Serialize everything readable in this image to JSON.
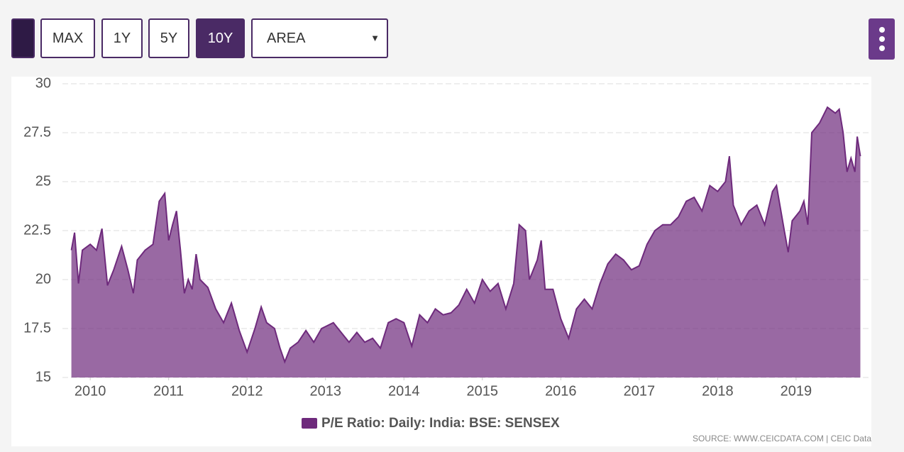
{
  "controls": {
    "buttons": [
      "MAX",
      "1Y",
      "5Y",
      "10Y"
    ],
    "select": "AREA"
  },
  "chart_data": {
    "type": "area",
    "x": [
      2009.76,
      2009.8,
      2009.85,
      2009.9,
      2010.0,
      2010.08,
      2010.15,
      2010.22,
      2010.3,
      2010.4,
      2010.48,
      2010.55,
      2010.6,
      2010.7,
      2010.8,
      2010.88,
      2010.95,
      2011.0,
      2011.05,
      2011.1,
      2011.15,
      2011.2,
      2011.25,
      2011.3,
      2011.35,
      2011.4,
      2011.5,
      2011.6,
      2011.7,
      2011.8,
      2011.9,
      2012.0,
      2012.1,
      2012.18,
      2012.25,
      2012.35,
      2012.42,
      2012.48,
      2012.55,
      2012.65,
      2012.75,
      2012.85,
      2012.95,
      2013.1,
      2013.2,
      2013.3,
      2013.4,
      2013.5,
      2013.6,
      2013.7,
      2013.8,
      2013.9,
      2014.0,
      2014.1,
      2014.2,
      2014.3,
      2014.4,
      2014.5,
      2014.6,
      2014.7,
      2014.8,
      2014.9,
      2015.0,
      2015.1,
      2015.2,
      2015.3,
      2015.4,
      2015.47,
      2015.55,
      2015.6,
      2015.7,
      2015.75,
      2015.8,
      2015.9,
      2016.0,
      2016.1,
      2016.2,
      2016.3,
      2016.4,
      2016.5,
      2016.6,
      2016.7,
      2016.8,
      2016.9,
      2017.0,
      2017.1,
      2017.2,
      2017.3,
      2017.4,
      2017.5,
      2017.6,
      2017.7,
      2017.8,
      2017.9,
      2018.0,
      2018.1,
      2018.15,
      2018.2,
      2018.3,
      2018.4,
      2018.5,
      2018.6,
      2018.7,
      2018.75,
      2018.85,
      2018.9,
      2018.95,
      2019.05,
      2019.1,
      2019.15,
      2019.2,
      2019.3,
      2019.4,
      2019.5,
      2019.55,
      2019.6,
      2019.65,
      2019.7,
      2019.75,
      2019.78,
      2019.82
    ],
    "series": [
      {
        "name": "P/E Ratio: Daily: India: BSE: SENSEX",
        "color": "#6e2a7c",
        "values": [
          21.5,
          22.4,
          19.8,
          21.5,
          21.8,
          21.5,
          22.6,
          19.7,
          20.5,
          21.7,
          20.5,
          19.3,
          21.0,
          21.5,
          21.8,
          24.0,
          24.4,
          22.0,
          22.8,
          23.5,
          21.5,
          19.3,
          20.0,
          19.5,
          21.3,
          20.0,
          19.6,
          18.5,
          17.8,
          18.8,
          17.4,
          16.3,
          17.5,
          18.6,
          17.8,
          17.5,
          16.5,
          15.8,
          16.5,
          16.8,
          17.4,
          16.8,
          17.5,
          17.8,
          17.3,
          16.8,
          17.3,
          16.8,
          17.0,
          16.5,
          17.8,
          18.0,
          17.8,
          16.6,
          18.2,
          17.8,
          18.5,
          18.2,
          18.3,
          18.7,
          19.5,
          18.8,
          20.0,
          19.4,
          19.8,
          18.5,
          19.8,
          22.8,
          22.5,
          20.0,
          21.0,
          22.0,
          19.5,
          19.5,
          18.0,
          17.0,
          18.5,
          19.0,
          18.5,
          19.8,
          20.8,
          21.3,
          21.0,
          20.5,
          20.7,
          21.8,
          22.5,
          22.8,
          22.8,
          23.2,
          24.0,
          24.2,
          23.5,
          24.8,
          24.5,
          25.0,
          26.3,
          23.8,
          22.8,
          23.5,
          23.8,
          22.8,
          24.5,
          24.8,
          22.5,
          21.4,
          23.0,
          23.5,
          24.0,
          22.8,
          27.5,
          28.0,
          28.8,
          28.5,
          28.7,
          27.5,
          25.5,
          26.2,
          25.5,
          27.3,
          26.3
        ]
      }
    ],
    "xlim": [
      2009.7,
      2019.96
    ],
    "xticks": [
      2010,
      2011,
      2012,
      2013,
      2014,
      2015,
      2016,
      2017,
      2018,
      2019
    ],
    "ylim": [
      15,
      30
    ],
    "yticks": [
      15,
      17.5,
      20,
      22.5,
      25,
      27.5,
      30
    ],
    "grid": true,
    "source": "SOURCE: WWW.CEICDATA.COM | CEIC Data"
  }
}
